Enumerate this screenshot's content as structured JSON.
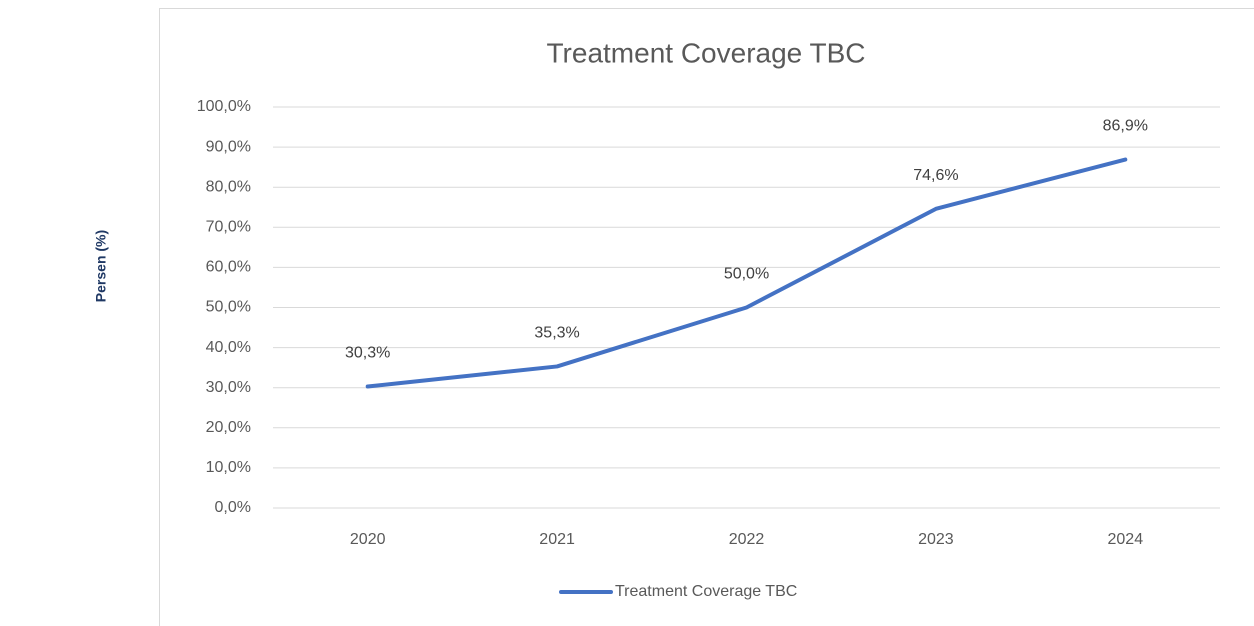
{
  "chart_data": {
    "type": "line",
    "title": "Treatment Coverage TBC",
    "y_label": "Persen (%)",
    "categories": [
      "2020",
      "2021",
      "2022",
      "2023",
      "2024"
    ],
    "series": [
      {
        "name": "Treatment Coverage TBC",
        "color": "#4472c4",
        "values": [
          30.3,
          35.3,
          50.0,
          74.6,
          86.9
        ],
        "value_labels": [
          "30,3%",
          "35,3%",
          "50,0%",
          "74,6%",
          "86,9%"
        ]
      }
    ],
    "ylim": [
      0,
      100
    ],
    "yticks": [
      {
        "value": 0,
        "label": "0,0%"
      },
      {
        "value": 10,
        "label": "10,0%"
      },
      {
        "value": 20,
        "label": "20,0%"
      },
      {
        "value": 30,
        "label": "30,0%"
      },
      {
        "value": 40,
        "label": "40,0%"
      },
      {
        "value": 50,
        "label": "50,0%"
      },
      {
        "value": 60,
        "label": "60,0%"
      },
      {
        "value": 70,
        "label": "70,0%"
      },
      {
        "value": 80,
        "label": "80,0%"
      },
      {
        "value": 90,
        "label": "90,0%"
      },
      {
        "value": 100,
        "label": "100,0%"
      }
    ],
    "grid": true,
    "legend": "bottom"
  }
}
